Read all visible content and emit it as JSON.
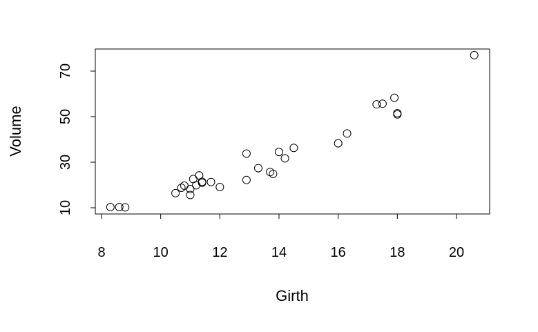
{
  "chart_data": {
    "type": "scatter",
    "title": "",
    "xlabel": "Girth",
    "ylabel": "Volume",
    "xlim": [
      8.0,
      21.0
    ],
    "ylim": [
      8.0,
      80.0
    ],
    "x_ticks": [
      8,
      10,
      12,
      14,
      16,
      18,
      20
    ],
    "y_ticks": [
      10,
      30,
      50,
      70
    ],
    "grid": false,
    "legend": null,
    "series": [
      {
        "x": [
          8.3,
          8.6,
          8.8,
          10.5,
          10.7,
          10.8,
          11.0,
          11.0,
          11.1,
          11.2,
          11.3,
          11.4,
          11.4,
          11.7,
          12.0,
          12.9,
          12.9,
          13.3,
          13.7,
          13.8,
          14.0,
          14.2,
          14.5,
          16.0,
          16.3,
          17.3,
          17.5,
          17.9,
          18.0,
          18.0,
          20.6
        ],
        "y": [
          10.3,
          10.3,
          10.2,
          16.4,
          18.8,
          19.7,
          15.6,
          18.2,
          22.6,
          19.9,
          24.2,
          21.0,
          21.4,
          21.3,
          19.1,
          22.2,
          33.8,
          27.4,
          25.7,
          24.9,
          34.5,
          31.7,
          36.3,
          38.3,
          42.6,
          55.4,
          55.7,
          58.3,
          51.5,
          51.0,
          77.0
        ]
      }
    ]
  }
}
